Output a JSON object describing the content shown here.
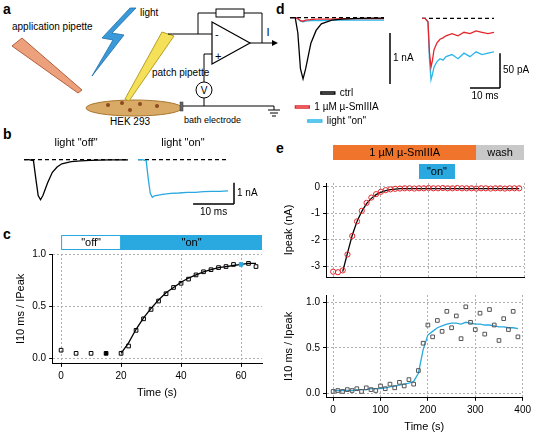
{
  "diagram": {
    "panel": "a",
    "labels": {
      "application_pipette": "application pipette",
      "light": "light",
      "patch_pipette": "patch pipette",
      "cell": "HEK 293",
      "bath_electrode": "bath electrode",
      "current": "I",
      "voltage": "V",
      "plus": "+",
      "minus": "-"
    }
  },
  "chart_data": [
    {
      "panel": "b",
      "type": "line",
      "title": "light \"off\"",
      "x": [
        0,
        1,
        2,
        2.5,
        3,
        3.5,
        4,
        5,
        6,
        7,
        8,
        10,
        12,
        14,
        16,
        18,
        20,
        22
      ],
      "xlim": [
        0,
        22
      ],
      "ylim": [
        -2.1,
        0.3
      ],
      "tick_labels": false,
      "grid": false,
      "series": [
        {
          "color": "#000000",
          "line_style": "solid",
          "marker": "none",
          "values": [
            0,
            0,
            -0.05,
            -0.9,
            -1.7,
            -1.9,
            -1.7,
            -1.1,
            -0.6,
            -0.35,
            -0.2,
            -0.1,
            -0.06,
            -0.04,
            -0.03,
            -0.02,
            -0.02,
            -0.02
          ]
        },
        {
          "color": "#000000",
          "line_style": "dashed",
          "marker": "none",
          "values": [
            0,
            0,
            0,
            0,
            0,
            0,
            0,
            0,
            0,
            0,
            0,
            0,
            0,
            0,
            0,
            0,
            0,
            0
          ]
        }
      ]
    },
    {
      "panel": "b",
      "type": "line",
      "title": "light \"on\"",
      "x": [
        0,
        1,
        2,
        2.5,
        3,
        3.5,
        4,
        5,
        6,
        7,
        8,
        10,
        12,
        14,
        16,
        18,
        20,
        22
      ],
      "xlim": [
        0,
        22
      ],
      "ylim": [
        -2.1,
        0.3
      ],
      "tick_labels": false,
      "grid": false,
      "series": [
        {
          "color": "#29a9e0",
          "line_style": "solid",
          "marker": "none",
          "values": [
            0,
            0,
            -0.05,
            -0.9,
            -1.6,
            -1.78,
            -1.72,
            -1.68,
            -1.65,
            -1.62,
            -1.6,
            -1.58,
            -1.55,
            -1.55,
            -1.52,
            -1.5,
            -1.5,
            -1.48
          ]
        },
        {
          "color": "#000000",
          "line_style": "dashed",
          "marker": "none",
          "values": [
            0,
            0,
            0,
            0,
            0,
            0,
            0,
            0,
            0,
            0,
            0,
            0,
            0,
            0,
            0,
            0,
            0,
            0
          ]
        }
      ],
      "scale_bars": {
        "x": {
          "value": 10,
          "label": "10 ms"
        },
        "y": {
          "value": 1,
          "label": "1 nA"
        }
      }
    },
    {
      "panel": "c",
      "type": "scatter",
      "x_label": "Time (s)",
      "y_label": "I10 ms / IPeak",
      "x": [
        0,
        5,
        10,
        15,
        20,
        22.5,
        25,
        27.5,
        30,
        32.5,
        35,
        37.5,
        40,
        42.5,
        45,
        47.5,
        50,
        52.5,
        55,
        57.5,
        60,
        62.5,
        65
      ],
      "xlim": [
        -3,
        67
      ],
      "xticks": [
        0,
        20,
        40,
        60
      ],
      "ylim": [
        -0.05,
        1.0
      ],
      "yticks": [
        {
          "value": 0,
          "label": "0.0"
        },
        {
          "value": 0.5,
          "label": "0.5"
        },
        {
          "value": 1,
          "label": "1.0"
        }
      ],
      "grid": true,
      "series": [
        {
          "type": "scatter",
          "color": "#000000",
          "marker": "open_square",
          "values": [
            0.08,
            0.05,
            0.05,
            null,
            0.05,
            0.12,
            0.27,
            0.38,
            0.47,
            0.55,
            0.62,
            0.68,
            0.72,
            0.76,
            0.8,
            0.83,
            0.85,
            0.87,
            0.88,
            0.9,
            null,
            0.91,
            0.88
          ]
        },
        {
          "type": "scatter",
          "color": "#000000",
          "marker": "filled_square",
          "values": [
            null,
            null,
            null,
            0.05,
            null,
            null,
            null,
            null,
            null,
            null,
            null,
            null,
            null,
            null,
            null,
            null,
            null,
            null,
            null,
            null,
            null,
            null,
            null
          ]
        },
        {
          "type": "scatter",
          "color": "#29a9e0",
          "marker": "filled_square",
          "values": [
            null,
            null,
            null,
            null,
            null,
            null,
            null,
            null,
            null,
            null,
            null,
            null,
            null,
            null,
            null,
            null,
            null,
            null,
            null,
            null,
            0.9,
            null,
            null
          ]
        },
        {
          "type": "line",
          "color": "#000000",
          "marker": "none",
          "line_style": "solid",
          "values": [
            null,
            null,
            null,
            null,
            0.05,
            0.15,
            0.28,
            0.39,
            0.48,
            0.56,
            0.63,
            0.68,
            0.73,
            0.77,
            0.8,
            0.83,
            0.85,
            0.87,
            0.88,
            0.89,
            0.9,
            0.91,
            0.91
          ]
        }
      ],
      "periods": [
        {
          "label": "\"off\"",
          "start": 0,
          "end": 20,
          "color": "#ffffff"
        },
        {
          "label": "\"on\"",
          "start": 20,
          "end": 67,
          "color": "#29a9e0"
        }
      ]
    },
    {
      "panel": "d",
      "type": "line",
      "x": [
        0,
        1,
        1.5,
        2,
        2.5,
        3,
        4,
        5,
        6,
        8,
        10,
        12,
        15,
        18
      ],
      "xlim": [
        0,
        18
      ],
      "ylim": [
        -1.3,
        0.15
      ],
      "tick_labels": false,
      "grid": false,
      "legend": "bottom",
      "series": [
        {
          "name": "ctrl",
          "color": "#000000",
          "line_style": "solid",
          "marker": "none",
          "values": [
            0,
            0,
            -0.3,
            -1.0,
            -1.2,
            -1.0,
            -0.5,
            -0.25,
            -0.12,
            -0.05,
            -0.03,
            -0.02,
            -0.01,
            -0.01
          ]
        },
        {
          "name": "1 µM µ-SmIIIA",
          "color": "#e3262b",
          "line_style": "solid",
          "marker": "none",
          "values": [
            0,
            0,
            -0.02,
            -0.06,
            -0.07,
            -0.05,
            -0.04,
            -0.03,
            -0.03,
            -0.03,
            -0.02,
            -0.02,
            -0.02,
            -0.02
          ]
        },
        {
          "name": "light \"on\"",
          "color": "#29b6e8",
          "line_style": "solid",
          "marker": "none",
          "values": [
            0,
            0,
            -0.02,
            -0.07,
            -0.08,
            -0.07,
            -0.06,
            -0.06,
            -0.06,
            -0.05,
            -0.05,
            -0.05,
            -0.05,
            -0.05
          ]
        },
        {
          "color": "#000000",
          "line_style": "dashed",
          "marker": "none",
          "values": [
            0,
            0,
            0,
            0,
            0,
            0,
            0,
            0,
            0,
            0,
            0,
            0,
            0,
            0
          ]
        }
      ],
      "scale_bars": {
        "y": {
          "value": 1,
          "label": "1 nA"
        }
      }
    },
    {
      "panel": "d",
      "type": "line",
      "x": [
        0,
        1,
        2,
        2.5,
        3,
        3.5,
        4,
        5,
        6,
        7,
        8,
        10,
        12,
        14,
        16,
        18,
        20,
        22,
        24
      ],
      "xlim": [
        0,
        24
      ],
      "ylim": [
        -100,
        12
      ],
      "tick_labels": false,
      "grid": false,
      "series": [
        {
          "color": "#e3262b",
          "line_style": "solid",
          "marker": "none",
          "values": [
            0,
            0,
            -5,
            -50,
            -70,
            -60,
            -45,
            -35,
            -30,
            -28,
            -25,
            -22,
            -25,
            -20,
            -22,
            -18,
            -20,
            -22,
            -20
          ]
        },
        {
          "color": "#29b6e8",
          "line_style": "solid",
          "marker": "none",
          "values": [
            0,
            0,
            -5,
            -60,
            -88,
            -80,
            -70,
            -62,
            -58,
            -60,
            -55,
            -52,
            -58,
            -50,
            -55,
            -48,
            -52,
            -50,
            -48
          ]
        },
        {
          "color": "#000000",
          "line_style": "dashed",
          "marker": "none",
          "values": [
            0,
            0,
            0,
            0,
            0,
            0,
            0,
            0,
            0,
            0,
            0,
            0,
            0,
            0,
            0,
            0,
            0,
            0,
            0
          ]
        }
      ],
      "scale_bars": {
        "x": {
          "value": 10,
          "label": "10 ms"
        },
        "y": {
          "value": 50,
          "label": "50 pA"
        }
      }
    },
    {
      "panel": "e",
      "type": "scatter",
      "y_label": "Ipeak (nA)",
      "x": [
        0,
        10,
        20,
        30,
        40,
        50,
        60,
        70,
        80,
        90,
        100,
        110,
        120,
        130,
        140,
        150,
        160,
        170,
        180,
        190,
        200,
        210,
        220,
        230,
        240,
        250,
        260,
        270,
        280,
        290,
        300,
        310,
        320,
        330,
        340,
        350,
        360,
        370,
        380,
        390
      ],
      "xlim": [
        -15,
        400
      ],
      "xticks": [
        0,
        100,
        200,
        300,
        400
      ],
      "ylim": [
        -3.4,
        0.15
      ],
      "yticks": [
        -3,
        -2,
        -1,
        0
      ],
      "tick_labels": "y",
      "grid": true,
      "series": [
        {
          "type": "scatter",
          "color": "#e3262b",
          "marker": "open_circle",
          "values": [
            -3.2,
            -3.22,
            -3.15,
            -2.55,
            -1.85,
            -1.3,
            -0.9,
            -0.6,
            -0.4,
            -0.27,
            -0.18,
            -0.12,
            -0.09,
            -0.07,
            -0.06,
            -0.05,
            -0.05,
            -0.06,
            -0.05,
            -0.05,
            -0.04,
            -0.05,
            -0.05,
            -0.04,
            -0.05,
            -0.05,
            -0.04,
            -0.05,
            -0.05,
            -0.05,
            -0.06,
            -0.05,
            -0.05,
            -0.06,
            -0.05,
            -0.05,
            -0.06,
            -0.05,
            -0.05,
            -0.05
          ]
        },
        {
          "type": "line",
          "color": "#000000",
          "marker": "none",
          "line_style": "solid",
          "values": [
            null,
            null,
            -3.2,
            -2.5,
            -1.82,
            -1.3,
            -0.92,
            -0.63,
            -0.43,
            -0.29,
            -0.2,
            -0.14,
            -0.1,
            -0.08,
            -0.06,
            -0.06,
            -0.06,
            -0.06,
            -0.06,
            -0.06,
            -0.06,
            -0.06,
            -0.06,
            -0.06,
            -0.06,
            -0.06,
            -0.06,
            -0.06,
            -0.06,
            -0.06,
            -0.06,
            -0.06,
            -0.06,
            -0.06,
            -0.06,
            -0.06,
            -0.06,
            -0.06,
            -0.06,
            -0.06
          ]
        }
      ],
      "periods": [
        {
          "label": "1 µM µ-SmIIIA",
          "start": 0,
          "end": 300,
          "color": "#f0742c"
        },
        {
          "label": "wash",
          "start": 300,
          "end": 400,
          "color": "#c8c8c8"
        }
      ],
      "light_periods": [
        {
          "label": "\"on\"",
          "start": 180,
          "end": 255,
          "color": "#29a9e0"
        }
      ]
    },
    {
      "panel": "e",
      "type": "scatter",
      "x_label": "Time (s)",
      "y_label": "I10 ms / Ipeak",
      "x": [
        0,
        10,
        20,
        30,
        40,
        50,
        60,
        70,
        80,
        90,
        100,
        110,
        120,
        130,
        140,
        150,
        160,
        170,
        180,
        190,
        200,
        210,
        220,
        230,
        240,
        250,
        260,
        270,
        280,
        290,
        300,
        310,
        320,
        330,
        340,
        350,
        360,
        370,
        380,
        390
      ],
      "xlim": [
        -15,
        400
      ],
      "xticks": [
        0,
        100,
        200,
        300,
        400
      ],
      "ylim": [
        -0.05,
        1.08
      ],
      "yticks": [
        {
          "value": 0,
          "label": "0.0"
        },
        {
          "value": 0.5,
          "label": "0.5"
        },
        {
          "value": 1,
          "label": "1.0"
        }
      ],
      "grid": true,
      "series": [
        {
          "type": "scatter",
          "color": "#555555",
          "marker": "open_square",
          "values": [
            0.02,
            0.03,
            0.02,
            0.04,
            0.03,
            0.05,
            0.02,
            0.06,
            0.04,
            0.03,
            0.08,
            0.05,
            0.1,
            0.06,
            0.12,
            0.08,
            0.15,
            0.1,
            0.25,
            0.55,
            0.75,
            0.62,
            0.8,
            0.68,
            0.9,
            0.72,
            0.85,
            0.6,
            0.95,
            0.78,
            0.7,
            0.88,
            0.65,
            0.92,
            0.75,
            0.58,
            0.82,
            0.7,
            0.9,
            0.62
          ]
        },
        {
          "type": "line",
          "color": "#29a9e0",
          "marker": "none",
          "line_style": "solid",
          "values": [
            0.03,
            0.03,
            0.03,
            0.03,
            0.03,
            0.04,
            0.04,
            0.04,
            0.05,
            0.05,
            0.05,
            0.06,
            0.07,
            0.08,
            0.09,
            0.1,
            0.11,
            0.13,
            0.22,
            0.48,
            0.64,
            0.68,
            0.72,
            0.74,
            0.76,
            0.77,
            0.77,
            0.76,
            0.78,
            0.77,
            0.76,
            0.76,
            0.75,
            0.75,
            0.74,
            0.73,
            0.73,
            0.72,
            0.72,
            0.71
          ]
        }
      ]
    }
  ]
}
